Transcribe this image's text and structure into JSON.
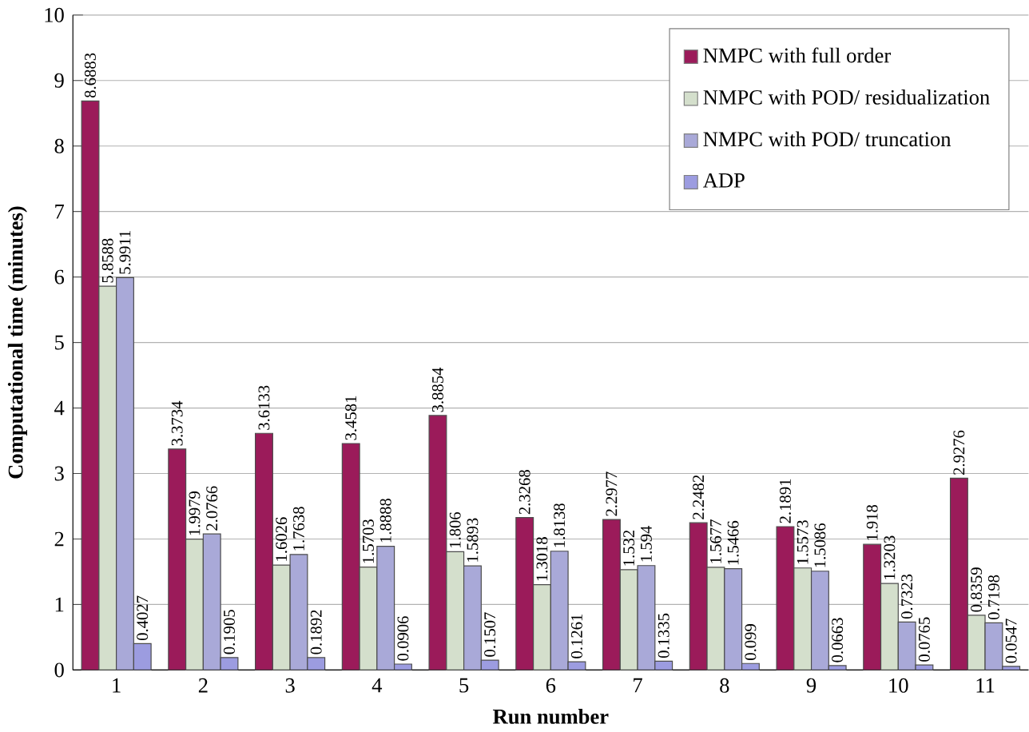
{
  "chart_data": {
    "type": "bar",
    "xlabel": "Run number",
    "ylabel": "Computational time (minutes)",
    "categories": [
      "1",
      "2",
      "3",
      "4",
      "5",
      "6",
      "7",
      "8",
      "9",
      "10",
      "11"
    ],
    "series": [
      {
        "name": "NMPC with full order",
        "color": "#9b1b5a",
        "values": [
          8.6883,
          3.3734,
          3.6133,
          3.4581,
          3.8854,
          2.3268,
          2.2977,
          2.2482,
          2.1891,
          1.918,
          2.9276
        ]
      },
      {
        "name": "NMPC with POD/ residualization",
        "color": "#d4dfcc",
        "values": [
          5.8588,
          1.9979,
          1.6026,
          1.5703,
          1.806,
          1.3018,
          1.532,
          1.5677,
          1.5573,
          1.3203,
          0.8359
        ]
      },
      {
        "name": "NMPC with POD/ truncation",
        "color": "#a9a9d8",
        "values": [
          5.9911,
          2.0766,
          1.7638,
          1.8888,
          1.5893,
          1.8138,
          1.594,
          1.5466,
          1.5086,
          0.7323,
          0.7198
        ]
      },
      {
        "name": "ADP",
        "color": "#9c9ce0",
        "values": [
          0.4027,
          0.1905,
          0.1892,
          0.0906,
          0.1507,
          0.1261,
          0.1335,
          0.099,
          0.0663,
          0.0765,
          0.0547
        ]
      }
    ],
    "ylim": [
      0,
      10
    ],
    "yticks": [
      0,
      1,
      2,
      3,
      4,
      5,
      6,
      7,
      8,
      9,
      10
    ],
    "grid": "y",
    "legend": "top right",
    "data_labels": true
  }
}
